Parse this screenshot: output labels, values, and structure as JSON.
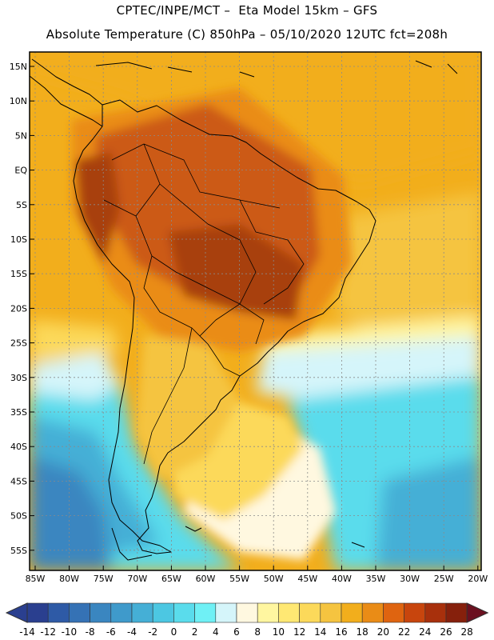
{
  "title_line1": "CPTEC/INPE/MCT –  Eta Model 15km – GFS",
  "title_line2": "Absolute Temperature (C) 850hPa – 05/10/2020 12UTC fct=208h",
  "lat_labels": [
    "15N",
    "10N",
    "5N",
    "EQ",
    "5S",
    "10S",
    "15S",
    "20S",
    "25S",
    "30S",
    "35S",
    "40S",
    "45S",
    "50S",
    "55S"
  ],
  "lon_labels": [
    "85W",
    "80W",
    "75W",
    "70W",
    "65W",
    "60W",
    "55W",
    "50W",
    "45W",
    "40W",
    "35W",
    "30W",
    "25W",
    "20W"
  ],
  "colorbar": {
    "labels": [
      "-14",
      "-12",
      "-10",
      "-8",
      "-6",
      "-4",
      "-2",
      "0",
      "2",
      "4",
      "6",
      "8",
      "10",
      "12",
      "14",
      "16",
      "18",
      "20",
      "22",
      "24",
      "26",
      "28"
    ],
    "colors": [
      "#2a3f8f",
      "#2e5aa6",
      "#3572b5",
      "#3a86c0",
      "#3f9acb",
      "#45afd6",
      "#4cc7e2",
      "#5adcec",
      "#6ff0f5",
      "#d5f5fa",
      "#fff8e0",
      "#fff6a0",
      "#ffe873",
      "#fcd95a",
      "#f5c440",
      "#f2ae1c",
      "#ea8c16",
      "#df6410",
      "#c8450d",
      "#a8300c",
      "#86200c"
    ],
    "left_arrow_color": "#2a3f8f",
    "right_arrow_color": "#6b1020"
  },
  "field_colors": {
    "very_hot": "#a8400e",
    "hot": "#cc5a12",
    "warm": "#ea8c16",
    "orange": "#f2ae1c",
    "amber": "#f5c440",
    "yellow": "#fcd95a",
    "pale": "#fff6a0",
    "cream": "#fff8e0",
    "ice": "#d5f5fa",
    "cyan": "#5adcec",
    "sky": "#45afd6",
    "blue": "#3a86c0"
  }
}
